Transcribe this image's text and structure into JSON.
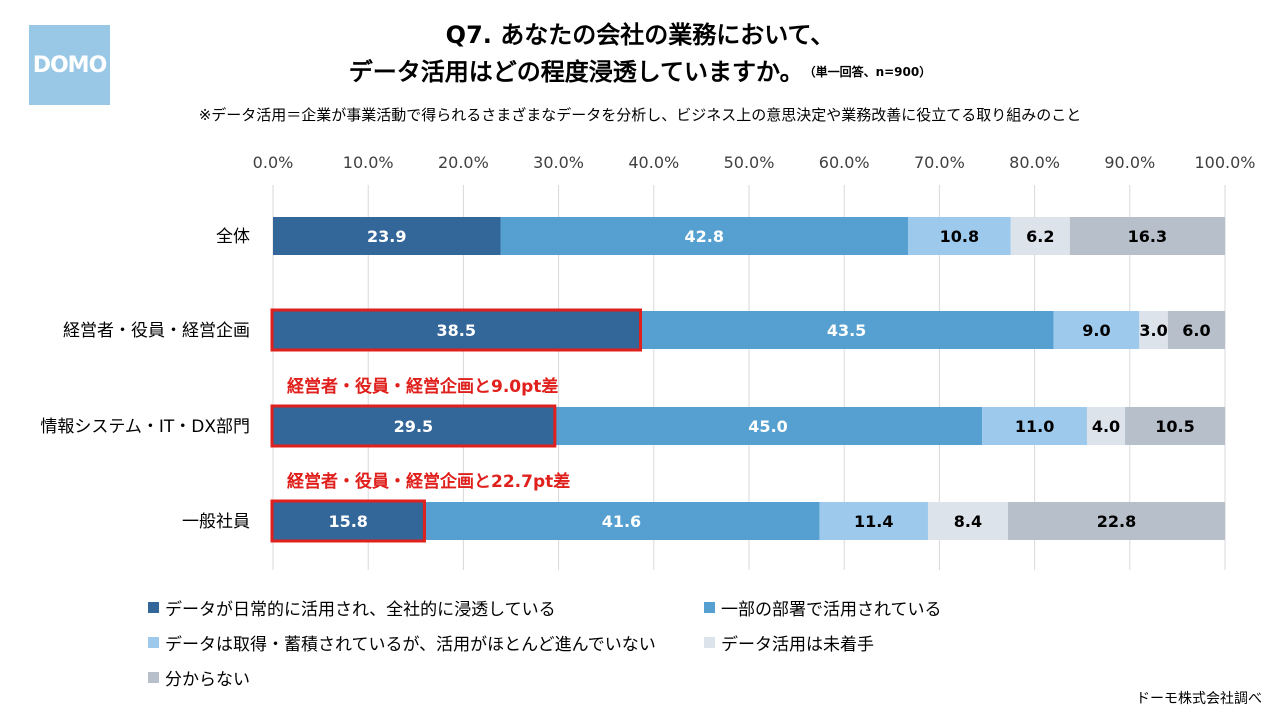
{
  "header": {
    "logo_text": "DOMO",
    "title_line1": "Q7. あなたの会社の業務において、",
    "title_line2": "データ活用はどの程度浸透していますか。",
    "title_note": "（単一回答、n=900）",
    "subtitle": "※データ活用＝企業が事業活動で得られるさまざまなデータを分析し、ビジネス上の意思決定や業務改善に役立てる取り組みのこと"
  },
  "chart_data": {
    "type": "bar",
    "orientation": "horizontal",
    "stacked": true,
    "x_ticks": [
      "0.0%",
      "10.0%",
      "20.0%",
      "30.0%",
      "40.0%",
      "50.0%",
      "60.0%",
      "70.0%",
      "80.0%",
      "90.0%",
      "100.0%"
    ],
    "xlim": [
      0,
      100
    ],
    "categories": [
      "全体",
      "経営者・役員・経営企画",
      "情報システム・IT・DX部門",
      "一般社員"
    ],
    "series": [
      {
        "name": "データが日常的に活用され、全社的に浸透している",
        "color": "#336699",
        "values": [
          23.9,
          38.5,
          29.5,
          15.8
        ],
        "labels": [
          "23.9",
          "38.5",
          "29.5",
          "15.8"
        ]
      },
      {
        "name": "一部の部署で活用されている",
        "color": "#55a0d0",
        "values": [
          42.8,
          43.5,
          45.0,
          41.6
        ],
        "labels": [
          "42.8",
          "43.5",
          "45.0",
          "41.6"
        ]
      },
      {
        "name": "データは取得・蓄積されているが、活用がほとんど進んでいない",
        "color": "#9dcaec",
        "values": [
          10.8,
          9.0,
          11.0,
          11.4
        ],
        "labels": [
          "10.8",
          "9.0",
          "11.0",
          "11.4"
        ]
      },
      {
        "name": "データ活用は未着手",
        "color": "#dde3ea",
        "values": [
          6.2,
          3.0,
          4.0,
          8.4
        ],
        "labels": [
          "6.2",
          "3.0",
          "4.0",
          "8.4"
        ]
      },
      {
        "name": "分からない",
        "color": "#b6bfca",
        "values": [
          16.3,
          6.0,
          10.5,
          22.8
        ],
        "labels": [
          "16.3",
          "6.0",
          "10.5",
          "22.8"
        ]
      }
    ],
    "highlights": [
      {
        "category_index": 1,
        "series_index": 0
      },
      {
        "category_index": 2,
        "series_index": 0,
        "annotation": "経営者・役員・経営企画と9.0pt差"
      },
      {
        "category_index": 3,
        "series_index": 0,
        "annotation": "経営者・役員・経営企画と22.7pt差"
      }
    ],
    "highlight_color": "#e0201c",
    "grid": true,
    "legend_position": "bottom"
  },
  "footer": {
    "source": "ドーモ株式会社調べ"
  }
}
